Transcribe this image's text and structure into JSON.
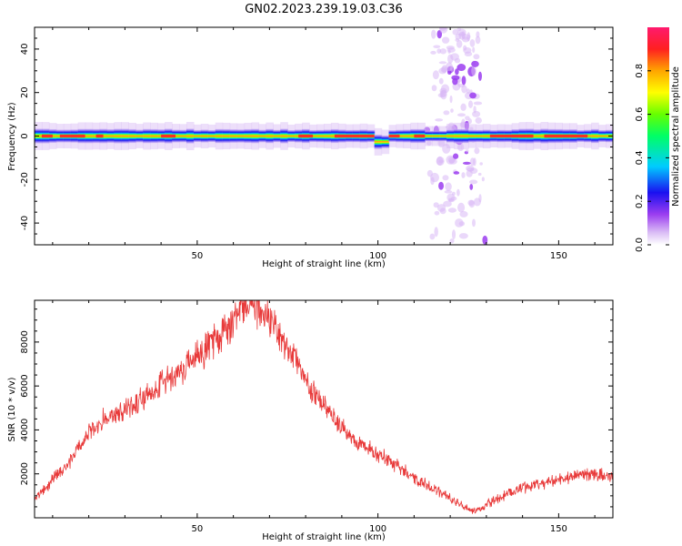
{
  "figure_title": "GN02.2023.239.19.03.C36",
  "colors": {
    "snr_line": "#e83a3a",
    "colormap": [
      "#ffffff",
      "#d8b8f5",
      "#9b3df0",
      "#1a10f0",
      "#00ccff",
      "#00ff66",
      "#66ff00",
      "#ffff00",
      "#ffa500",
      "#ff2020",
      "#ff1a6e"
    ]
  },
  "chart_data": [
    {
      "type": "heatmap",
      "title": "",
      "xlabel": "Height of straight line (km)",
      "ylabel": "Frequency (Hz)",
      "xlim": [
        5,
        165
      ],
      "ylim": [
        -50,
        50
      ],
      "x_ticks": [
        50,
        100,
        150
      ],
      "y_ticks": [
        -40,
        -20,
        0,
        20,
        40
      ],
      "grid": false,
      "colorbar": {
        "label": "Normalized spectral amplitude",
        "range": [
          0,
          1
        ],
        "ticks": [
          0.0,
          0.2,
          0.4,
          0.6,
          0.8
        ],
        "colormap": "rainbow (white-violet-blue-cyan-green-yellow-orange-red-magenta)"
      },
      "features": [
        {
          "name": "carrier band",
          "frequency_hz": 0,
          "x_range": [
            5,
            165
          ],
          "peak_amplitude": 1.0,
          "half_width_hz": 3
        },
        {
          "name": "frequency dip",
          "x_center": 101,
          "frequency_hz": -4
        },
        {
          "name": "broadband spread",
          "x_range": [
            113,
            131
          ],
          "frequency_range": [
            -50,
            50
          ],
          "amplitude": 0.2
        }
      ]
    },
    {
      "type": "line",
      "title": "",
      "xlabel": "Height of straight line (km)",
      "ylabel": "SNR (10 * v/v)",
      "xlim": [
        5,
        165
      ],
      "ylim": [
        0,
        9900
      ],
      "x_ticks": [
        50,
        100,
        150
      ],
      "y_ticks": [
        2000,
        4000,
        6000,
        8000
      ],
      "grid": false,
      "series": [
        {
          "x": [
            5,
            10,
            15,
            20,
            25,
            30,
            35,
            40,
            45,
            50,
            55,
            60,
            62,
            65,
            70,
            75,
            80,
            85,
            90,
            95,
            100,
            105,
            110,
            115,
            120,
            125,
            127,
            130,
            135,
            140,
            145,
            150,
            155,
            160,
            165
          ],
          "values": [
            900,
            1700,
            2600,
            3900,
            4600,
            4900,
            5500,
            6100,
            6600,
            7300,
            8100,
            9000,
            9500,
            9700,
            9100,
            7800,
            6300,
            5100,
            4100,
            3400,
            2900,
            2400,
            1800,
            1400,
            900,
            400,
            300,
            600,
            1000,
            1350,
            1550,
            1750,
            1900,
            1950,
            1850
          ]
        }
      ]
    }
  ]
}
